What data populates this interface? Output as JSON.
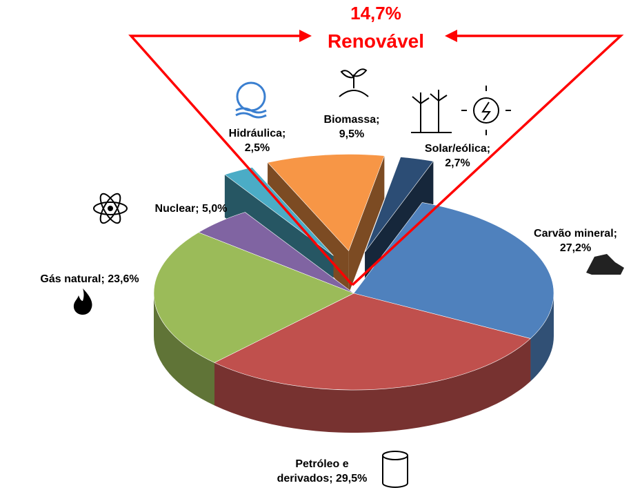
{
  "chart_data": {
    "type": "pie3d",
    "categories": [
      "Carvão mineral;",
      "Petróleo e derivados;",
      "Gás natural;",
      "Nuclear;",
      "Hidráulica;",
      "Biomassa;",
      "Solar/eólica;"
    ],
    "values": [
      27.2,
      29.5,
      23.6,
      5.0,
      2.5,
      9.5,
      2.7
    ],
    "value_labels": [
      "27,2%",
      "29,5%",
      "23,6%",
      "5,0%",
      "2,5%",
      "9,5%",
      "2,7%"
    ],
    "colors": [
      "#4f81bd",
      "#c0504d",
      "#9bbb59",
      "#8064a2",
      "#4bacc6",
      "#f79646",
      "#2c4d75"
    ],
    "exploded": [
      false,
      false,
      false,
      false,
      true,
      true,
      true
    ],
    "annotation": {
      "value": 14.7,
      "label": "14,7%",
      "text": "Renovável",
      "color": "#ff0000"
    }
  }
}
